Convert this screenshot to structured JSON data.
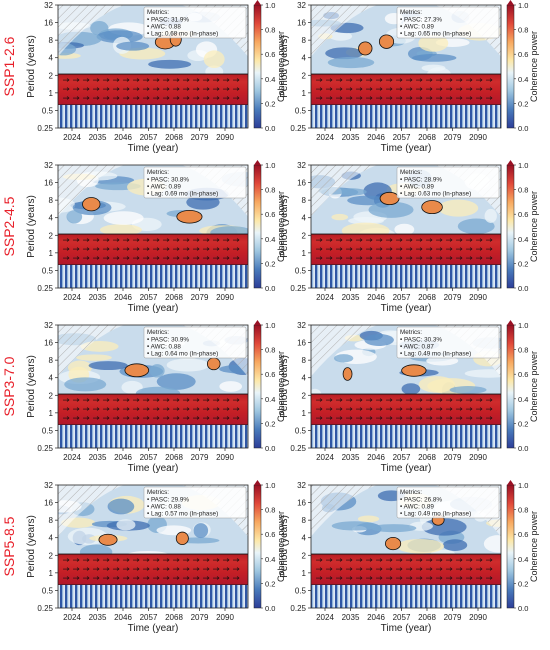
{
  "figure": {
    "row_labels": [
      "SSP1-2.6",
      "SSP2-4.5",
      "SSP3-7.0",
      "SSP5-8.5"
    ],
    "row_label_color": "#e8202a",
    "axis_label_color": "#222222"
  },
  "chart_data": [
    {
      "type": "heatmap",
      "scenario": "SSP1-2.6",
      "panel": "left",
      "xlabel": "Time (year)",
      "ylabel": "Period (years)",
      "x_ticks": [
        "2024",
        "2035",
        "2046",
        "2057",
        "2068",
        "2079",
        "2090"
      ],
      "y_ticks": [
        "0.25",
        "0.5",
        "1",
        "2",
        "4",
        "8",
        "16",
        "32"
      ],
      "y_scale": "log2",
      "ylim": [
        0.25,
        32
      ],
      "colorbar_label": "Coherence power",
      "colorbar_ticks": [
        "0.0",
        "0.2",
        "0.4",
        "0.6",
        "0.8",
        "1.0"
      ],
      "colorbar_range": [
        0,
        1
      ],
      "metrics_title": "Metrics:",
      "metrics": [
        "• PASC: 31.9%",
        "• AWC: 0.88",
        "• Lag: 0.68 mo (In-phase)"
      ],
      "pasc_percent": 31.9,
      "awc": 0.88,
      "lag_months": 0.68,
      "phase": "In-phase"
    },
    {
      "type": "heatmap",
      "scenario": "SSP1-2.6",
      "panel": "right",
      "xlabel": "Time (year)",
      "ylabel": "Period (years)",
      "x_ticks": [
        "2024",
        "2035",
        "2046",
        "2057",
        "2068",
        "2079",
        "2090"
      ],
      "y_ticks": [
        "0.25",
        "0.5",
        "1",
        "2",
        "4",
        "8",
        "16",
        "32"
      ],
      "y_scale": "log2",
      "ylim": [
        0.25,
        32
      ],
      "colorbar_label": "Coherence power",
      "colorbar_ticks": [
        "0.0",
        "0.2",
        "0.4",
        "0.6",
        "0.8",
        "1.0"
      ],
      "colorbar_range": [
        0,
        1
      ],
      "metrics_title": "Metrics:",
      "metrics": [
        "• PASC: 27.3%",
        "• AWC: 0.89",
        "• Lag: 0.65 mo (In-phase)"
      ],
      "pasc_percent": 27.3,
      "awc": 0.89,
      "lag_months": 0.65,
      "phase": "In-phase"
    },
    {
      "type": "heatmap",
      "scenario": "SSP2-4.5",
      "panel": "left",
      "xlabel": "Time (year)",
      "ylabel": "Period (years)",
      "x_ticks": [
        "2024",
        "2035",
        "2046",
        "2057",
        "2068",
        "2079",
        "2090"
      ],
      "y_ticks": [
        "0.25",
        "0.5",
        "1",
        "2",
        "4",
        "8",
        "16",
        "32"
      ],
      "y_scale": "log2",
      "ylim": [
        0.25,
        32
      ],
      "colorbar_label": "Coherence power",
      "colorbar_ticks": [
        "0.0",
        "0.2",
        "0.4",
        "0.6",
        "0.8",
        "1.0"
      ],
      "colorbar_range": [
        0,
        1
      ],
      "metrics_title": "Metrics:",
      "metrics": [
        "• PASC: 30.8%",
        "• AWC: 0.89",
        "• Lag: 0.69 mo (In-phase)"
      ],
      "pasc_percent": 30.8,
      "awc": 0.89,
      "lag_months": 0.69,
      "phase": "In-phase"
    },
    {
      "type": "heatmap",
      "scenario": "SSP2-4.5",
      "panel": "right",
      "xlabel": "Time (year)",
      "ylabel": "Period (years)",
      "x_ticks": [
        "2024",
        "2035",
        "2046",
        "2057",
        "2068",
        "2079",
        "2090"
      ],
      "y_ticks": [
        "0.25",
        "0.5",
        "1",
        "2",
        "4",
        "8",
        "16",
        "32"
      ],
      "y_scale": "log2",
      "ylim": [
        0.25,
        32
      ],
      "colorbar_label": "Coherence power",
      "colorbar_ticks": [
        "0.0",
        "0.2",
        "0.4",
        "0.6",
        "0.8",
        "1.0"
      ],
      "colorbar_range": [
        0,
        1
      ],
      "metrics_title": "Metrics:",
      "metrics": [
        "• PASC: 28.9%",
        "• AWC: 0.89",
        "• Lag: 0.63 mo (In-phase)"
      ],
      "pasc_percent": 28.9,
      "awc": 0.89,
      "lag_months": 0.63,
      "phase": "In-phase"
    },
    {
      "type": "heatmap",
      "scenario": "SSP3-7.0",
      "panel": "left",
      "xlabel": "Time (year)",
      "ylabel": "Period (years)",
      "x_ticks": [
        "2024",
        "2035",
        "2046",
        "2057",
        "2068",
        "2079",
        "2090"
      ],
      "y_ticks": [
        "0.25",
        "0.5",
        "1",
        "2",
        "4",
        "8",
        "16",
        "32"
      ],
      "y_scale": "log2",
      "ylim": [
        0.25,
        32
      ],
      "colorbar_label": "Coherence power",
      "colorbar_ticks": [
        "0.0",
        "0.2",
        "0.4",
        "0.6",
        "0.8",
        "1.0"
      ],
      "colorbar_range": [
        0,
        1
      ],
      "metrics_title": "Metrics:",
      "metrics": [
        "• PASC: 30.9%",
        "• AWC: 0.88",
        "• Lag: 0.64 mo (In-phase)"
      ],
      "pasc_percent": 30.9,
      "awc": 0.88,
      "lag_months": 0.64,
      "phase": "In-phase"
    },
    {
      "type": "heatmap",
      "scenario": "SSP3-7.0",
      "panel": "right",
      "xlabel": "Time (year)",
      "ylabel": "Period (years)",
      "x_ticks": [
        "2024",
        "2035",
        "2046",
        "2057",
        "2068",
        "2079",
        "2090"
      ],
      "y_ticks": [
        "0.25",
        "0.5",
        "1",
        "2",
        "4",
        "8",
        "16",
        "32"
      ],
      "y_scale": "log2",
      "ylim": [
        0.25,
        32
      ],
      "colorbar_label": "Coherence power",
      "colorbar_ticks": [
        "0.0",
        "0.2",
        "0.4",
        "0.6",
        "0.8",
        "1.0"
      ],
      "colorbar_range": [
        0,
        1
      ],
      "metrics_title": "Metrics:",
      "metrics": [
        "• PASC: 30.3%",
        "• AWC: 0.87",
        "• Lag: 0.49 mo (In-phase)"
      ],
      "pasc_percent": 30.3,
      "awc": 0.87,
      "lag_months": 0.49,
      "phase": "In-phase"
    },
    {
      "type": "heatmap",
      "scenario": "SSP5-8.5",
      "panel": "left",
      "xlabel": "Time (year)",
      "ylabel": "Period (years)",
      "x_ticks": [
        "2024",
        "2035",
        "2046",
        "2057",
        "2068",
        "2079",
        "2090"
      ],
      "y_ticks": [
        "0.25",
        "0.5",
        "1",
        "2",
        "4",
        "8",
        "16",
        "32"
      ],
      "y_scale": "log2",
      "ylim": [
        0.25,
        32
      ],
      "colorbar_label": "Coherence power",
      "colorbar_ticks": [
        "0.0",
        "0.2",
        "0.4",
        "0.6",
        "0.8",
        "1.0"
      ],
      "colorbar_range": [
        0,
        1
      ],
      "metrics_title": "Metrics:",
      "metrics": [
        "• PASC: 29.9%",
        "• AWC: 0.88",
        "• Lag: 0.57 mo (In-phase)"
      ],
      "pasc_percent": 29.9,
      "awc": 0.88,
      "lag_months": 0.57,
      "phase": "In-phase"
    },
    {
      "type": "heatmap",
      "scenario": "SSP5-8.5",
      "panel": "right",
      "xlabel": "Time (year)",
      "ylabel": "Period (years)",
      "x_ticks": [
        "2024",
        "2035",
        "2046",
        "2057",
        "2068",
        "2079",
        "2090"
      ],
      "y_ticks": [
        "0.25",
        "0.5",
        "1",
        "2",
        "4",
        "8",
        "16",
        "32"
      ],
      "y_scale": "log2",
      "ylim": [
        0.25,
        32
      ],
      "colorbar_label": "Coherence power",
      "colorbar_ticks": [
        "0.0",
        "0.2",
        "0.4",
        "0.6",
        "0.8",
        "1.0"
      ],
      "colorbar_range": [
        0,
        1
      ],
      "metrics_title": "Metrics:",
      "metrics": [
        "• PASC: 26.8%",
        "• AWC: 0.89",
        "• Lag: 0.49 mo (In-phase)"
      ],
      "pasc_percent": 26.8,
      "awc": 0.89,
      "lag_months": 0.49,
      "phase": "In-phase"
    }
  ]
}
